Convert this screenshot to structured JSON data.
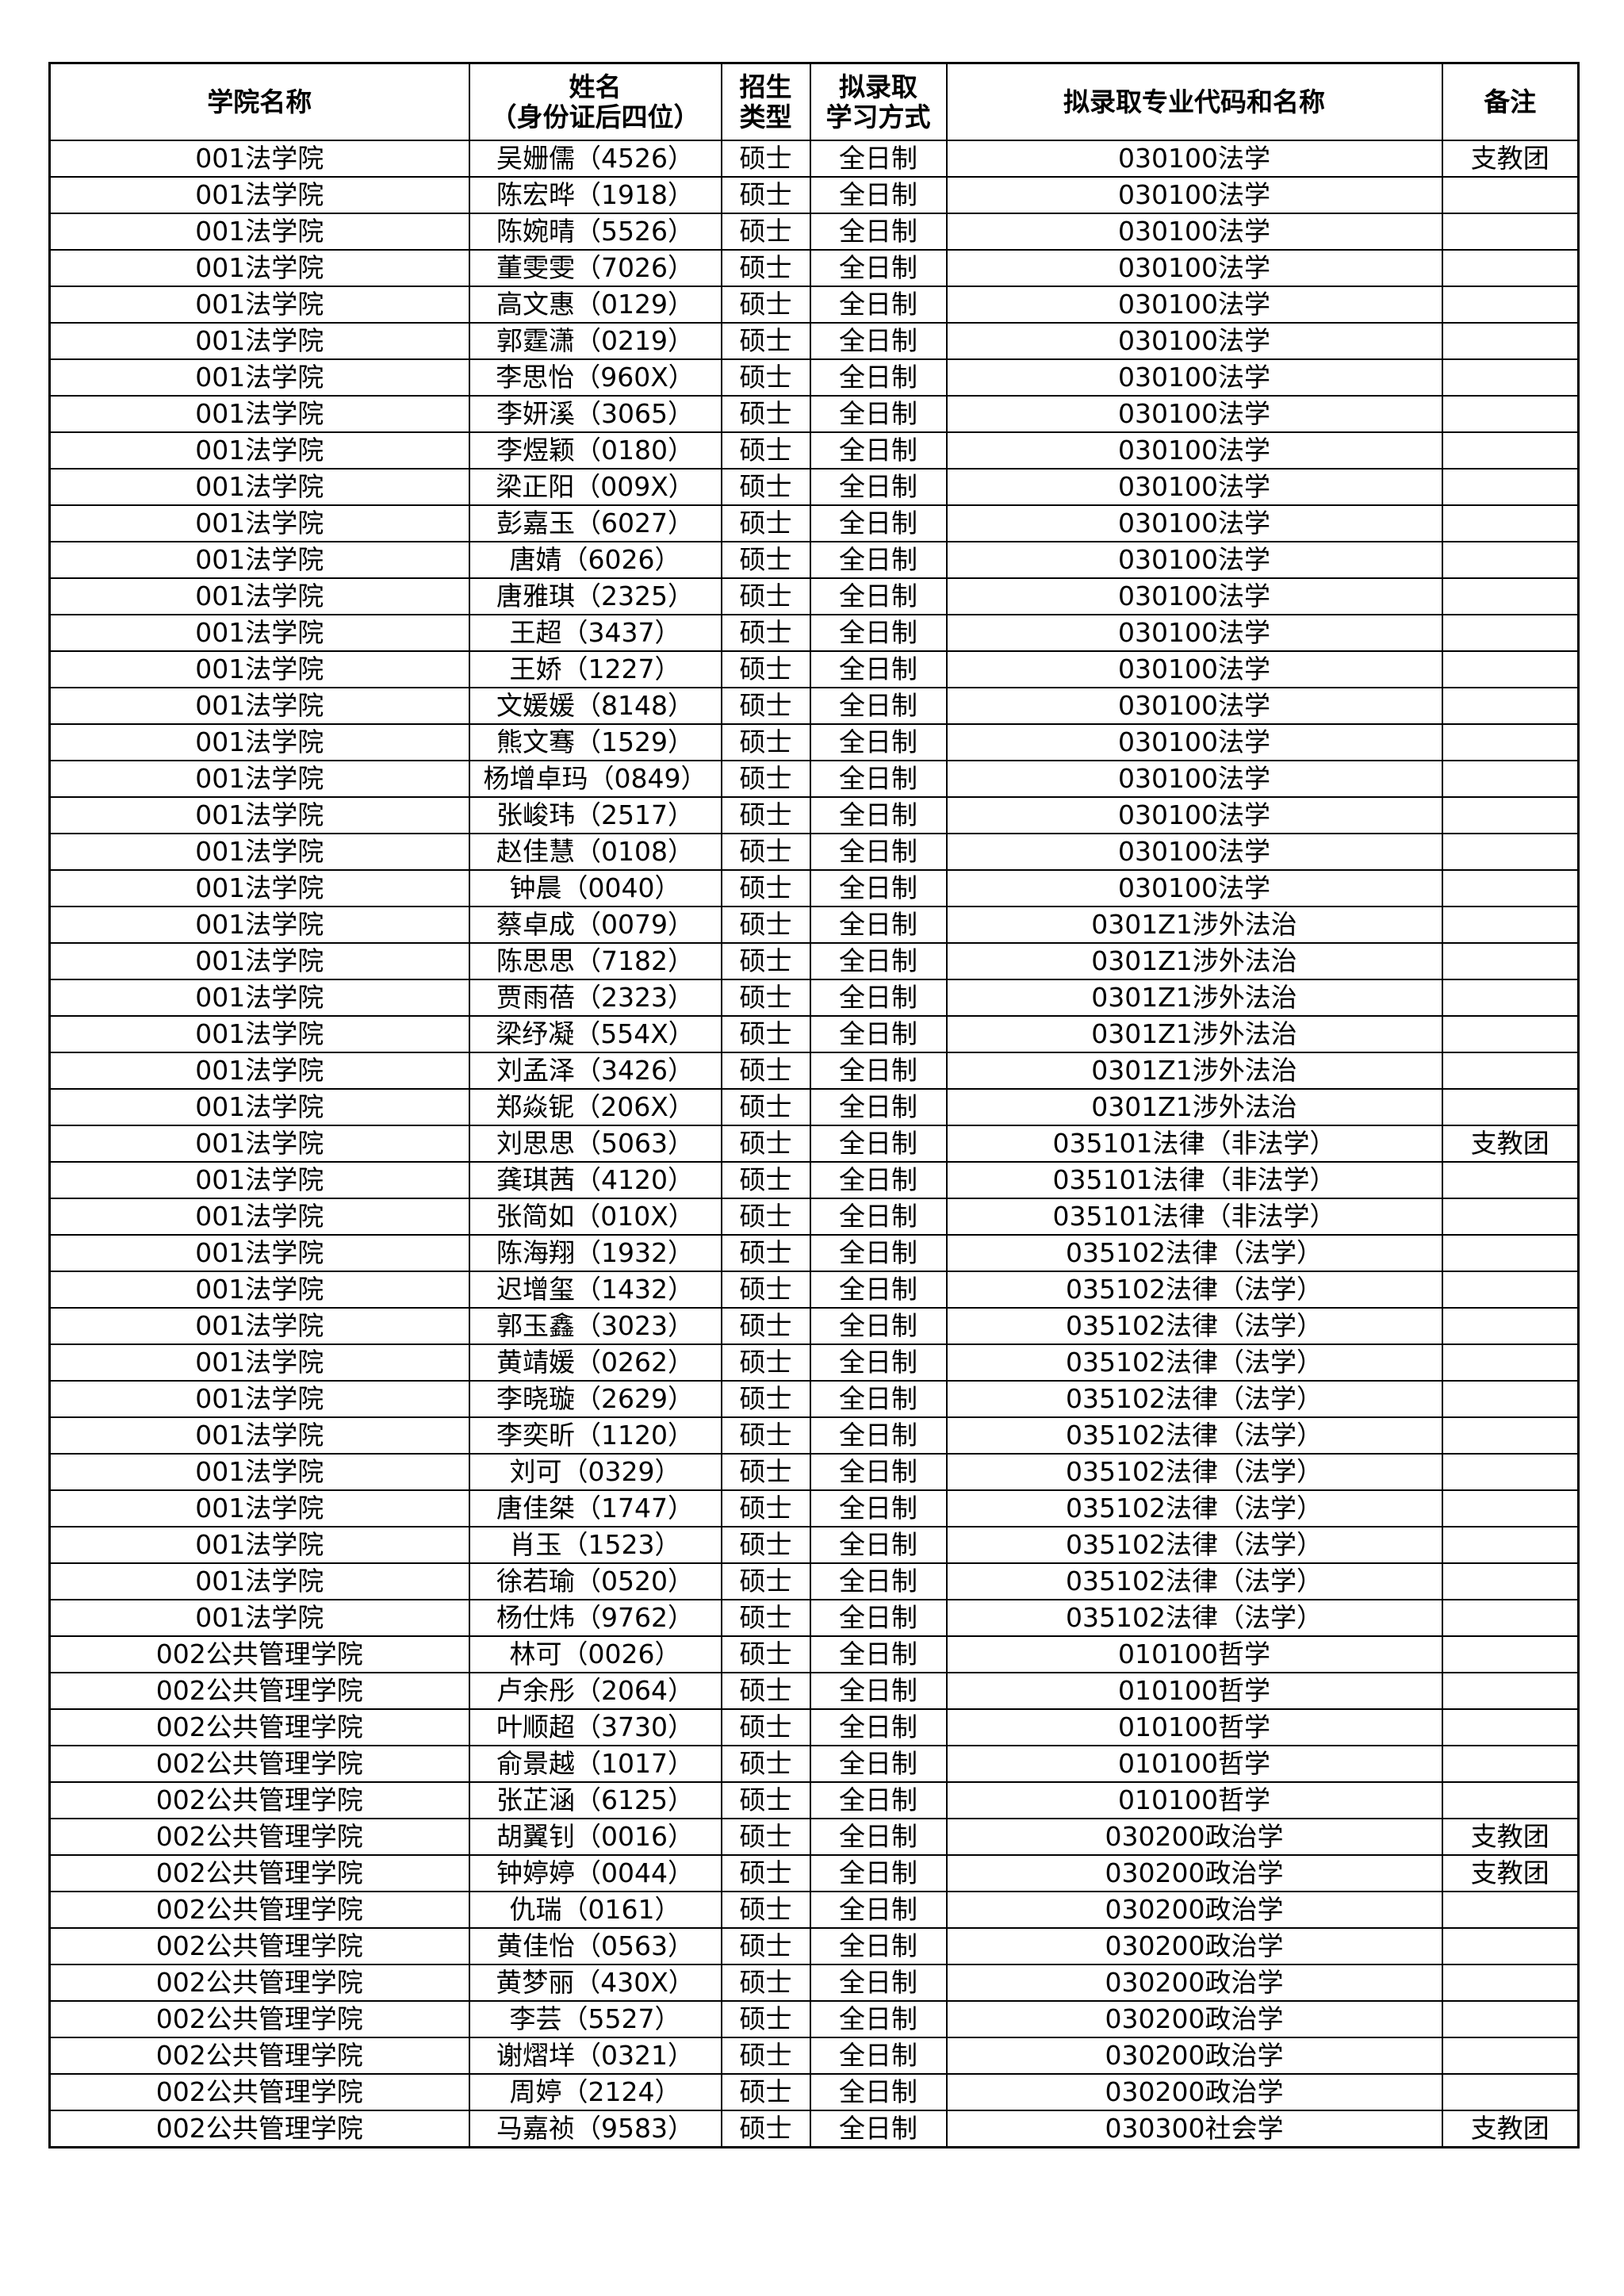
{
  "headers": [
    "学院名称",
    "姓名\n（身份证后四位）",
    "招生\n类型",
    "拟录取\n学习方式",
    "拟录取专业代码和名称",
    "备注"
  ],
  "rows": [
    [
      "001法学院",
      "吴姗儒（4526）",
      "硕士",
      "全日制",
      "030100法学",
      "支教团"
    ],
    [
      "001法学院",
      "陈宏晔（1918）",
      "硕士",
      "全日制",
      "030100法学",
      ""
    ],
    [
      "001法学院",
      "陈婉晴（5526）",
      "硕士",
      "全日制",
      "030100法学",
      ""
    ],
    [
      "001法学院",
      "董雯雯（7026）",
      "硕士",
      "全日制",
      "030100法学",
      ""
    ],
    [
      "001法学院",
      "高文惠（0129）",
      "硕士",
      "全日制",
      "030100法学",
      ""
    ],
    [
      "001法学院",
      "郭霆潇（0219）",
      "硕士",
      "全日制",
      "030100法学",
      ""
    ],
    [
      "001法学院",
      "李思怡（960X）",
      "硕士",
      "全日制",
      "030100法学",
      ""
    ],
    [
      "001法学院",
      "李妍溪（3065）",
      "硕士",
      "全日制",
      "030100法学",
      ""
    ],
    [
      "001法学院",
      "李煜颖（0180）",
      "硕士",
      "全日制",
      "030100法学",
      ""
    ],
    [
      "001法学院",
      "梁正阳（009X）",
      "硕士",
      "全日制",
      "030100法学",
      ""
    ],
    [
      "001法学院",
      "彭嘉玉（6027）",
      "硕士",
      "全日制",
      "030100法学",
      ""
    ],
    [
      "001法学院",
      "唐婧（6026）",
      "硕士",
      "全日制",
      "030100法学",
      ""
    ],
    [
      "001法学院",
      "唐雅琪（2325）",
      "硕士",
      "全日制",
      "030100法学",
      ""
    ],
    [
      "001法学院",
      "王超（3437）",
      "硕士",
      "全日制",
      "030100法学",
      ""
    ],
    [
      "001法学院",
      "王娇（1227）",
      "硕士",
      "全日制",
      "030100法学",
      ""
    ],
    [
      "001法学院",
      "文媛媛（8148）",
      "硕士",
      "全日制",
      "030100法学",
      ""
    ],
    [
      "001法学院",
      "熊文骞（1529）",
      "硕士",
      "全日制",
      "030100法学",
      ""
    ],
    [
      "001法学院",
      "杨增卓玛（0849）",
      "硕士",
      "全日制",
      "030100法学",
      ""
    ],
    [
      "001法学院",
      "张峻玮（2517）",
      "硕士",
      "全日制",
      "030100法学",
      ""
    ],
    [
      "001法学院",
      "赵佳慧（0108）",
      "硕士",
      "全日制",
      "030100法学",
      ""
    ],
    [
      "001法学院",
      "钟晨（0040）",
      "硕士",
      "全日制",
      "030100法学",
      ""
    ],
    [
      "001法学院",
      "蔡卓成（0079）",
      "硕士",
      "全日制",
      "0301Z1涉外法治",
      ""
    ],
    [
      "001法学院",
      "陈思思（7182）",
      "硕士",
      "全日制",
      "0301Z1涉外法治",
      ""
    ],
    [
      "001法学院",
      "贾雨蓓（2323）",
      "硕士",
      "全日制",
      "0301Z1涉外法治",
      ""
    ],
    [
      "001法学院",
      "梁纾凝（554X）",
      "硕士",
      "全日制",
      "0301Z1涉外法治",
      ""
    ],
    [
      "001法学院",
      "刘孟泽（3426）",
      "硕士",
      "全日制",
      "0301Z1涉外法治",
      ""
    ],
    [
      "001法学院",
      "郑焱铌（206X）",
      "硕士",
      "全日制",
      "0301Z1涉外法治",
      ""
    ],
    [
      "001法学院",
      "刘思思（5063）",
      "硕士",
      "全日制",
      "035101法律（非法学）",
      "支教团"
    ],
    [
      "001法学院",
      "龚琪茜（4120）",
      "硕士",
      "全日制",
      "035101法律（非法学）",
      ""
    ],
    [
      "001法学院",
      "张简如（010X）",
      "硕士",
      "全日制",
      "035101法律（非法学）",
      ""
    ],
    [
      "001法学院",
      "陈海翔（1932）",
      "硕士",
      "全日制",
      "035102法律（法学）",
      ""
    ],
    [
      "001法学院",
      "迟增玺（1432）",
      "硕士",
      "全日制",
      "035102法律（法学）",
      ""
    ],
    [
      "001法学院",
      "郭玉鑫（3023）",
      "硕士",
      "全日制",
      "035102法律（法学）",
      ""
    ],
    [
      "001法学院",
      "黄靖媛（0262）",
      "硕士",
      "全日制",
      "035102法律（法学）",
      ""
    ],
    [
      "001法学院",
      "李晓璇（2629）",
      "硕士",
      "全日制",
      "035102法律（法学）",
      ""
    ],
    [
      "001法学院",
      "李奕昕（1120）",
      "硕士",
      "全日制",
      "035102法律（法学）",
      ""
    ],
    [
      "001法学院",
      "刘可（0329）",
      "硕士",
      "全日制",
      "035102法律（法学）",
      ""
    ],
    [
      "001法学院",
      "唐佳桀（1747）",
      "硕士",
      "全日制",
      "035102法律（法学）",
      ""
    ],
    [
      "001法学院",
      "肖玉（1523）",
      "硕士",
      "全日制",
      "035102法律（法学）",
      ""
    ],
    [
      "001法学院",
      "徐若瑜（0520）",
      "硕士",
      "全日制",
      "035102法律（法学）",
      ""
    ],
    [
      "001法学院",
      "杨仕炜（9762）",
      "硕士",
      "全日制",
      "035102法律（法学）",
      ""
    ],
    [
      "002公共管理学院",
      "林可（0026）",
      "硕士",
      "全日制",
      "010100哲学",
      ""
    ],
    [
      "002公共管理学院",
      "卢余彤（2064）",
      "硕士",
      "全日制",
      "010100哲学",
      ""
    ],
    [
      "002公共管理学院",
      "叶顺超（3730）",
      "硕士",
      "全日制",
      "010100哲学",
      ""
    ],
    [
      "002公共管理学院",
      "俞景越（1017）",
      "硕士",
      "全日制",
      "010100哲学",
      ""
    ],
    [
      "002公共管理学院",
      "张芷涵（6125）",
      "硕士",
      "全日制",
      "010100哲学",
      ""
    ],
    [
      "002公共管理学院",
      "胡翼钊（0016）",
      "硕士",
      "全日制",
      "030200政治学",
      "支教团"
    ],
    [
      "002公共管理学院",
      "钟婷婷（0044）",
      "硕士",
      "全日制",
      "030200政治学",
      "支教团"
    ],
    [
      "002公共管理学院",
      "仇瑞（0161）",
      "硕士",
      "全日制",
      "030200政治学",
      ""
    ],
    [
      "002公共管理学院",
      "黄佳怡（0563）",
      "硕士",
      "全日制",
      "030200政治学",
      ""
    ],
    [
      "002公共管理学院",
      "黄梦丽（430X）",
      "硕士",
      "全日制",
      "030200政治学",
      ""
    ],
    [
      "002公共管理学院",
      "李芸（5527）",
      "硕士",
      "全日制",
      "030200政治学",
      ""
    ],
    [
      "002公共管理学院",
      "谢熠垟（0321）",
      "硕士",
      "全日制",
      "030200政治学",
      ""
    ],
    [
      "002公共管理学院",
      "周婷（2124）",
      "硕士",
      "全日制",
      "030200政治学",
      ""
    ],
    [
      "002公共管理学院",
      "马嘉祯（9583）",
      "硕士",
      "全日制",
      "030300社会学",
      "支教团"
    ]
  ]
}
